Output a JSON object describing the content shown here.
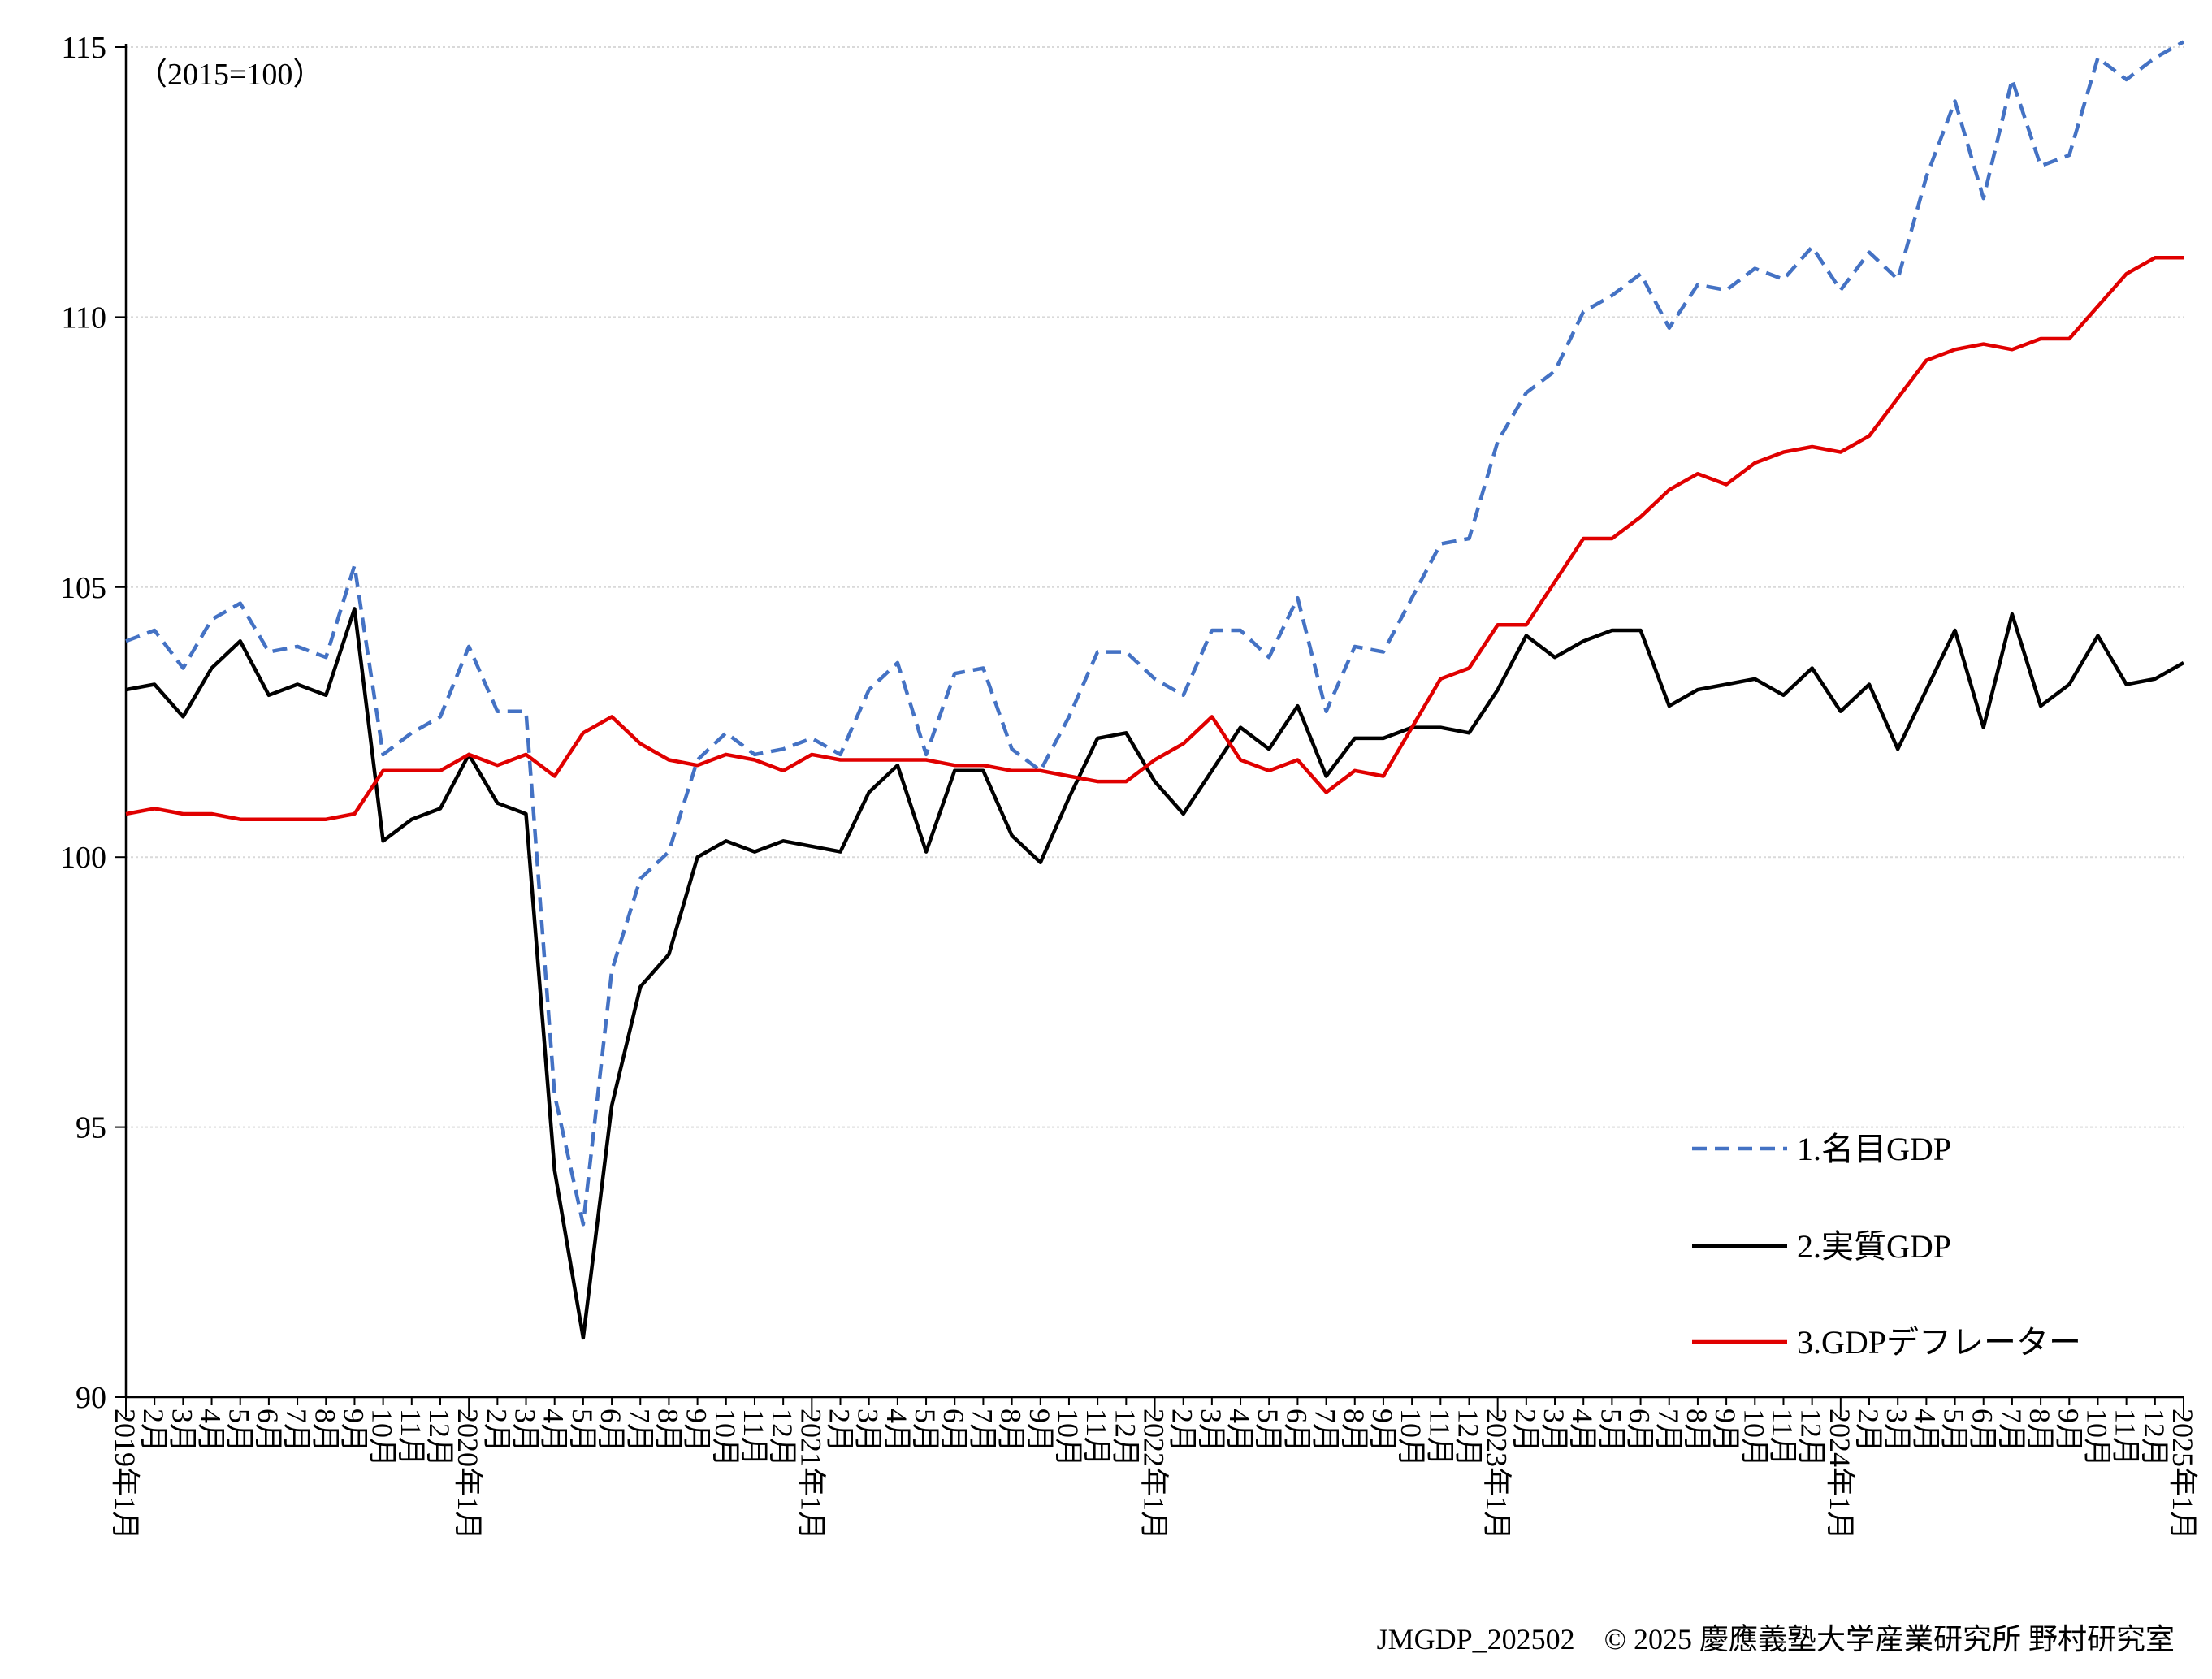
{
  "chart_data": {
    "type": "line",
    "unit_label": "（2015=100）",
    "ylim": [
      90,
      115
    ],
    "yticks": [
      90,
      95,
      100,
      105,
      110,
      115
    ],
    "grid": "horizontal",
    "legend_position": "bottom-right",
    "x": [
      "2019年1月",
      "2月",
      "3月",
      "4月",
      "5月",
      "6月",
      "7月",
      "8月",
      "9月",
      "10月",
      "11月",
      "12月",
      "2020年1月",
      "2月",
      "3月",
      "4月",
      "5月",
      "6月",
      "7月",
      "8月",
      "9月",
      "10月",
      "11月",
      "12月",
      "2021年1月",
      "2月",
      "3月",
      "4月",
      "5月",
      "6月",
      "7月",
      "8月",
      "9月",
      "10月",
      "11月",
      "12月",
      "2022年1月",
      "2月",
      "3月",
      "4月",
      "5月",
      "6月",
      "7月",
      "8月",
      "9月",
      "10月",
      "11月",
      "12月",
      "2023年1月",
      "2月",
      "3月",
      "4月",
      "5月",
      "6月",
      "7月",
      "8月",
      "9月",
      "10月",
      "11月",
      "12月",
      "2024年1月",
      "2月",
      "3月",
      "4月",
      "5月",
      "6月",
      "7月",
      "8月",
      "9月",
      "10月",
      "11月",
      "12月",
      "2025年1月"
    ],
    "series": [
      {
        "name": "1.名目GDP",
        "color": "#4472C4",
        "dash": true,
        "values": [
          104.0,
          104.2,
          103.5,
          104.4,
          104.7,
          103.8,
          103.9,
          103.7,
          105.4,
          101.9,
          102.3,
          102.6,
          103.9,
          102.7,
          102.7,
          95.6,
          93.2,
          97.9,
          99.6,
          100.1,
          101.8,
          102.3,
          101.9,
          102.0,
          102.2,
          101.9,
          103.1,
          103.6,
          101.9,
          103.4,
          103.5,
          102.0,
          101.6,
          102.6,
          103.8,
          103.8,
          103.3,
          103.0,
          104.2,
          104.2,
          103.7,
          104.8,
          102.7,
          103.9,
          103.8,
          104.8,
          105.8,
          105.9,
          107.7,
          108.6,
          109.0,
          110.1,
          110.4,
          110.8,
          109.8,
          110.6,
          110.5,
          110.9,
          110.7,
          111.3,
          110.5,
          111.2,
          110.7,
          112.6,
          114.0,
          112.2,
          114.4,
          112.8,
          113.0,
          114.8,
          114.4,
          114.8,
          115.1
        ]
      },
      {
        "name": "2.実質GDP",
        "color": "#000000",
        "dash": false,
        "values": [
          103.1,
          103.2,
          102.6,
          103.5,
          104.0,
          103.0,
          103.2,
          103.0,
          104.6,
          100.3,
          100.7,
          100.9,
          101.9,
          101.0,
          100.8,
          94.2,
          91.1,
          95.4,
          97.6,
          98.2,
          100.0,
          100.3,
          100.1,
          100.3,
          100.2,
          100.1,
          101.2,
          101.7,
          100.1,
          101.6,
          101.6,
          100.4,
          99.9,
          101.1,
          102.2,
          102.3,
          101.4,
          100.8,
          101.6,
          102.4,
          102.0,
          102.8,
          101.5,
          102.2,
          102.2,
          102.4,
          102.4,
          102.3,
          103.1,
          104.1,
          103.7,
          104.0,
          104.2,
          104.2,
          102.8,
          103.1,
          103.2,
          103.3,
          103.0,
          103.5,
          102.7,
          103.2,
          102.0,
          103.1,
          104.2,
          102.4,
          104.5,
          102.8,
          103.2,
          104.1,
          103.2,
          103.3,
          103.6
        ]
      },
      {
        "name": "3.GDPデフレーター",
        "color": "#E00000",
        "dash": false,
        "values": [
          100.8,
          100.9,
          100.8,
          100.8,
          100.7,
          100.7,
          100.7,
          100.7,
          100.8,
          101.6,
          101.6,
          101.6,
          101.9,
          101.7,
          101.9,
          101.5,
          102.3,
          102.6,
          102.1,
          101.8,
          101.7,
          101.9,
          101.8,
          101.6,
          101.9,
          101.8,
          101.8,
          101.8,
          101.8,
          101.7,
          101.7,
          101.6,
          101.6,
          101.5,
          101.4,
          101.4,
          101.8,
          102.1,
          102.6,
          101.8,
          101.6,
          101.8,
          101.2,
          101.6,
          101.5,
          102.4,
          103.3,
          103.5,
          104.3,
          104.3,
          105.1,
          105.9,
          105.9,
          106.3,
          106.8,
          107.1,
          106.9,
          107.3,
          107.5,
          107.6,
          107.5,
          107.8,
          108.5,
          109.2,
          109.4,
          109.5,
          109.4,
          109.6,
          109.6,
          110.2,
          110.8,
          111.1,
          111.1
        ]
      }
    ]
  },
  "footer": {
    "source": "JMGDP_202502　© 2025 慶應義塾大学産業研究所 野村研究室"
  }
}
